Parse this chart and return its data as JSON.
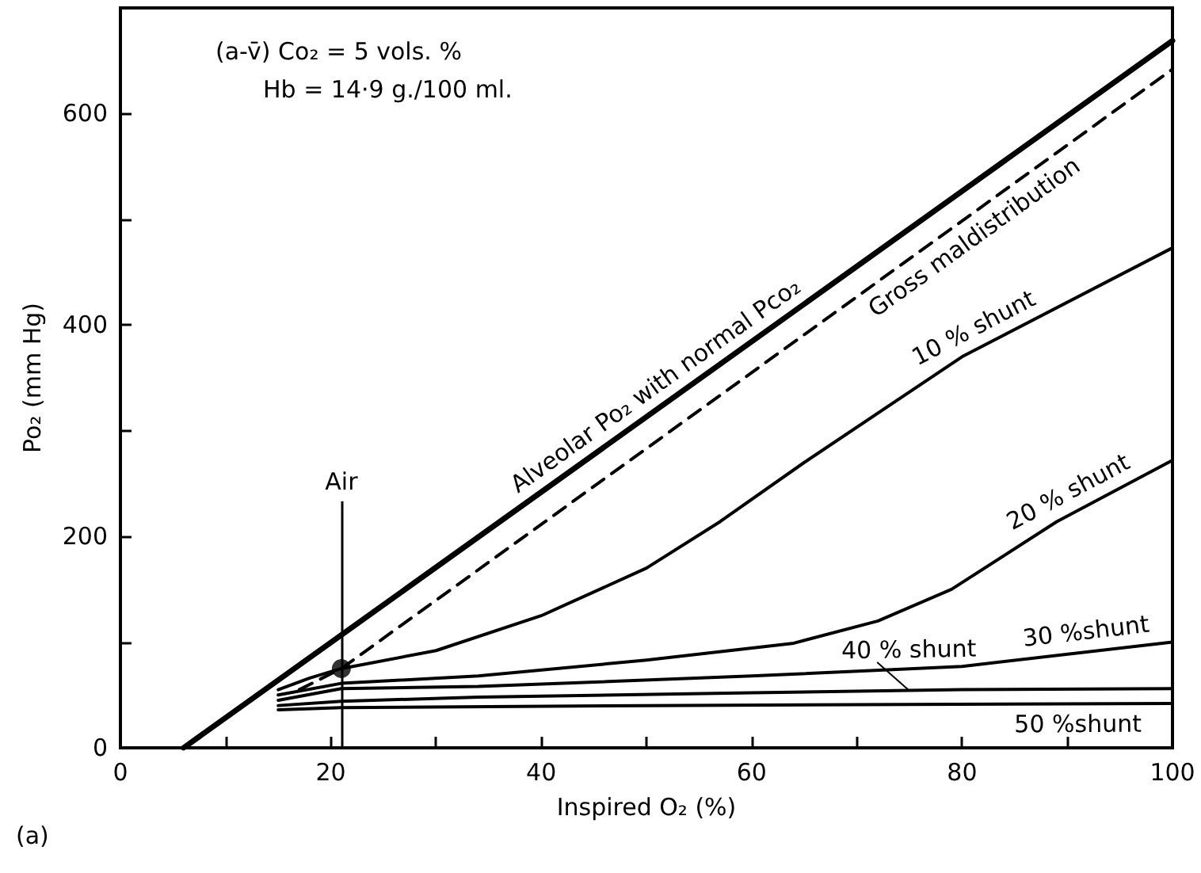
{
  "chart_data": {
    "type": "line",
    "subtitle": "(a)",
    "xlabel": "Inspired O₂ (%)",
    "ylabel": "Po₂ (mm Hg)",
    "xlim": [
      0,
      100
    ],
    "xticks": [
      0,
      {
        "value": 10,
        "label": null
      },
      20,
      {
        "value": 30,
        "label": null
      },
      40,
      {
        "value": 50,
        "label": null
      },
      60,
      {
        "value": 70,
        "label": null
      },
      80,
      {
        "value": 90,
        "label": null
      },
      100
    ],
    "ylim": [
      0,
      700
    ],
    "yticks": [
      0,
      {
        "value": 100,
        "label": null
      },
      200,
      {
        "value": 300,
        "label": null
      },
      400,
      {
        "value": 500,
        "label": null
      },
      600,
      {
        "value": 700,
        "label": null
      }
    ],
    "grid": false,
    "marker": "none",
    "series": [
      {
        "color": "#000000",
        "x": [
          6,
          100
        ],
        "values": [
          0,
          669
        ]
      },
      {
        "color": "#000000",
        "line_style": "dashed",
        "x": [
          17,
          21,
          60,
          100
        ],
        "values": [
          55,
          75,
          355,
          642
        ]
      },
      {
        "color": "#000000",
        "x": [
          15,
          18,
          21,
          30,
          40,
          50,
          57,
          65,
          80,
          100
        ],
        "values": [
          55,
          66,
          75,
          92,
          125,
          170,
          214,
          270,
          370,
          473
        ]
      },
      {
        "color": "#000000",
        "x": [
          15,
          21,
          34,
          50,
          64,
          72,
          79,
          89,
          100
        ],
        "values": [
          50,
          61,
          68,
          83,
          99,
          120,
          150,
          214,
          272
        ]
      },
      {
        "color": "#000000",
        "x": [
          15,
          21,
          34,
          60,
          80,
          100
        ],
        "values": [
          45,
          56,
          58,
          68,
          77,
          100
        ]
      },
      {
        "color": "#000000",
        "x": [
          15,
          21,
          34,
          60,
          80,
          100
        ],
        "values": [
          40,
          44,
          48,
          52,
          55,
          56
        ]
      },
      {
        "color": "#000000",
        "x": [
          15,
          21,
          50,
          100
        ],
        "values": [
          36,
          38,
          40,
          42
        ]
      },
      {
        "type": "scatter",
        "marker": "circle",
        "color": "#000000",
        "x": [
          21
        ],
        "values": [
          75
        ]
      }
    ],
    "ref_lines": [
      {
        "axis": "x",
        "value": 21,
        "label": "Air",
        "color": "#000000"
      }
    ],
    "annotations": [
      "(a-v̄) Co₂ = 5 vols. %",
      "Hb = 14·9 g./100 ml.",
      {
        "text": "Alveolar Po₂ with normal Pco₂",
        "x": 52,
        "y": 327
      },
      {
        "text": "Gross maldistribution",
        "x": 80,
        "y": 499
      },
      {
        "text": "10 % shunt",
        "x": 82,
        "y": 380
      },
      {
        "text": "20 % shunt",
        "x": 91,
        "y": 225
      },
      {
        "text": "30 %shunt",
        "x": 92,
        "y": 91
      },
      {
        "text": "40 % shunt",
        "x": 75,
        "y": 54
      },
      {
        "text": "50 %shunt",
        "x": 91,
        "y": 42
      }
    ]
  }
}
